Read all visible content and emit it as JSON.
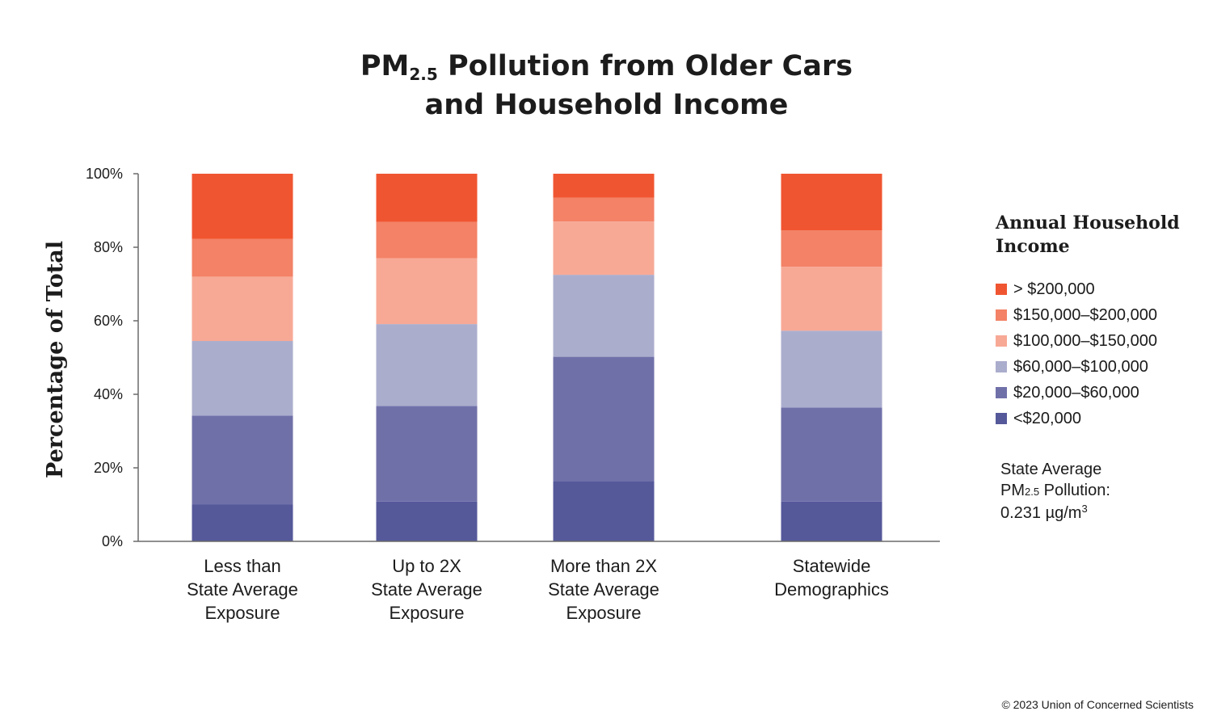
{
  "title": {
    "prefix": "PM",
    "subscript": "2.5",
    "line1_rest": " Pollution from Older Cars",
    "line2": "and Household Income"
  },
  "chart_data": {
    "type": "bar",
    "stacked": true,
    "ylabel": "Percentage of Total",
    "ylim": [
      0,
      100
    ],
    "yticks": [
      "0%",
      "20%",
      "40%",
      "60%",
      "80%",
      "100%"
    ],
    "categories": [
      [
        "Less than",
        "State Average",
        "Exposure"
      ],
      [
        "Up to 2X",
        "State Average",
        "Exposure"
      ],
      [
        "More than 2X",
        "State Average",
        "Exposure"
      ],
      [
        "Statewide",
        "Demographics"
      ]
    ],
    "series": [
      {
        "name": "<$20,000",
        "color": "#55599a",
        "values": [
          10,
          10.8,
          16.4,
          10.8
        ]
      },
      {
        "name": "$20,000–$60,000",
        "color": "#7070a9",
        "values": [
          24.2,
          26,
          33.8,
          25.6
        ]
      },
      {
        "name": "$60,000–$100,000",
        "color": "#abadcd",
        "values": [
          20.3,
          22.3,
          22.3,
          20.9
        ]
      },
      {
        "name": "$100,000–$150,000",
        "color": "#f7a996",
        "values": [
          17.5,
          17.9,
          14.5,
          17.4
        ]
      },
      {
        "name": "$150,000–$200,000",
        "color": "#f38266",
        "values": [
          10.3,
          9.9,
          6.5,
          9.9
        ]
      },
      {
        "name": "> $200,000",
        "color": "#f05531",
        "values": [
          17.7,
          13.1,
          6.5,
          15.4
        ]
      }
    ]
  },
  "legend": {
    "title": "Annual Household Income"
  },
  "note": {
    "line1": "State Average",
    "pm_prefix": "PM",
    "pm_sub": "2.5",
    "pm_rest": " Pollution:",
    "value": "0.231 µg/m",
    "value_sup": "3"
  },
  "copyright": "© 2023 Union of Concerned Scientists"
}
